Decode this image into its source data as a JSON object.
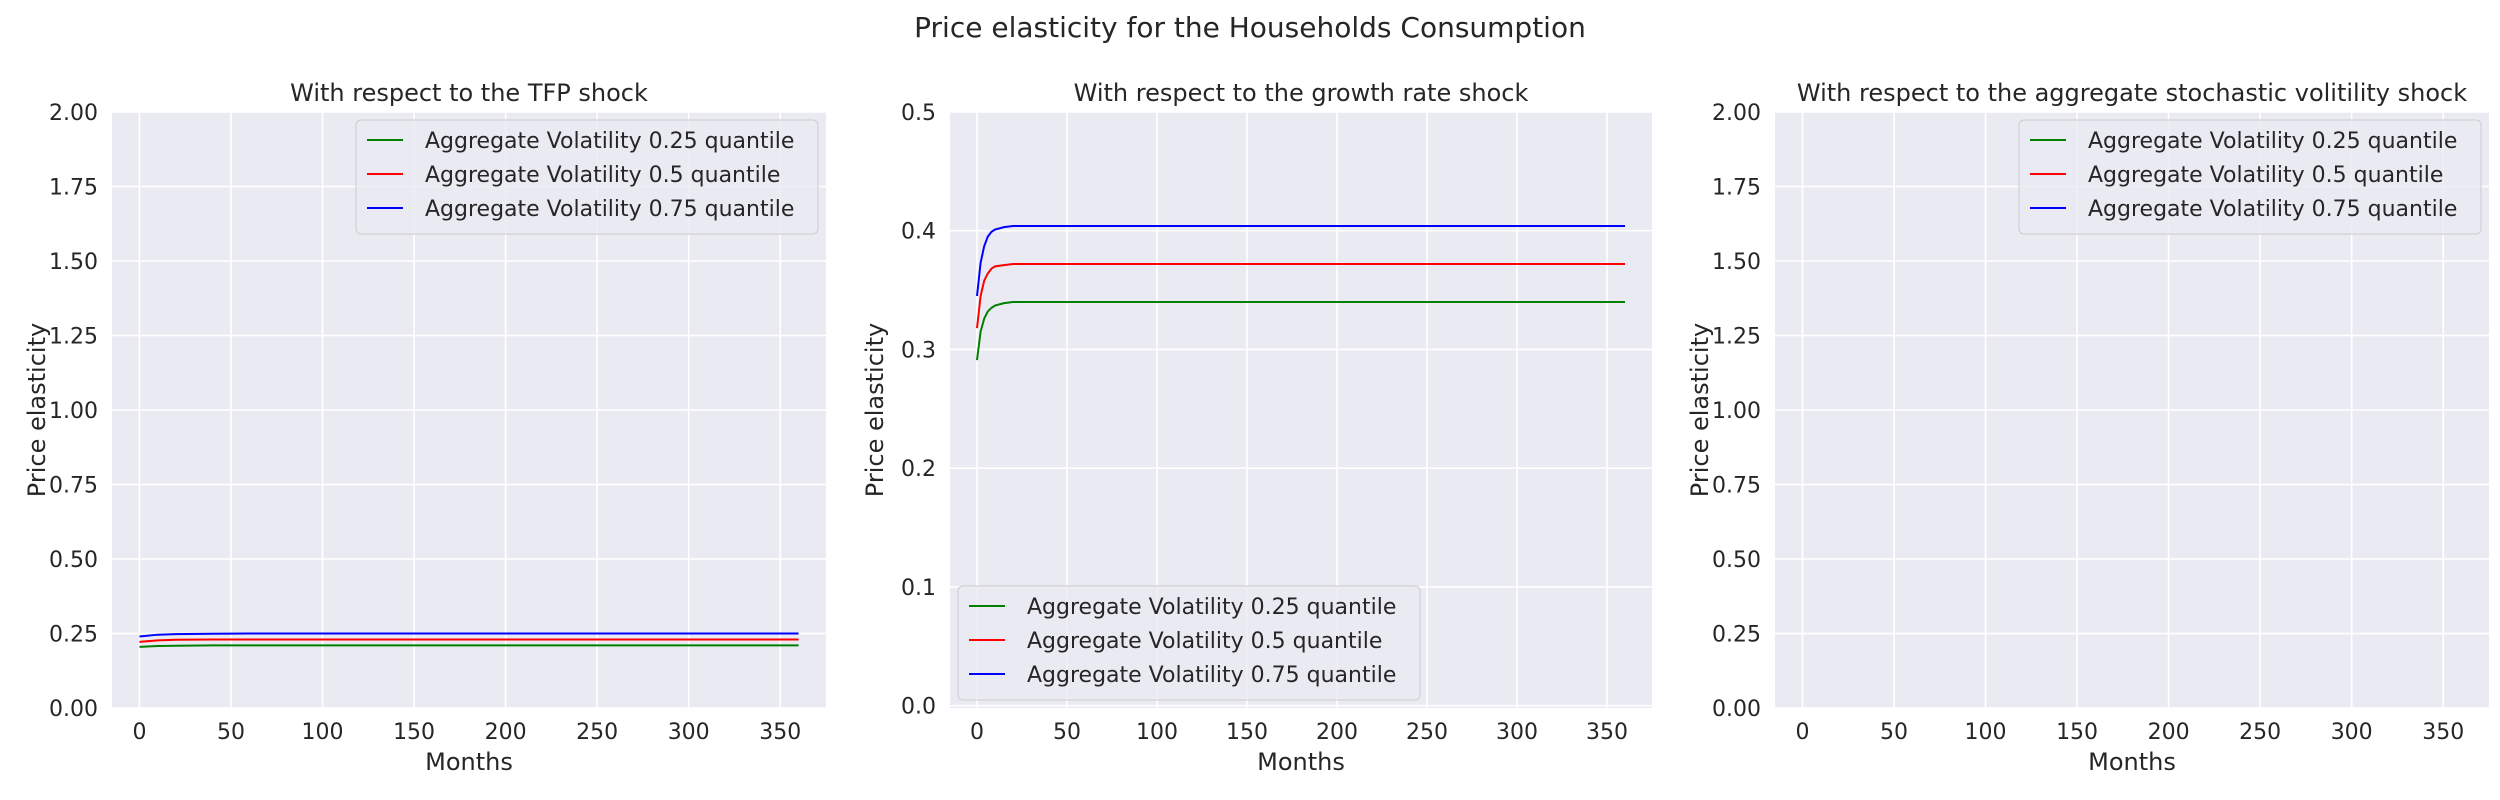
{
  "figure": {
    "suptitle": "Price elasticity for the Households Consumption"
  },
  "colors": {
    "background": "#ffffff",
    "axes_face": "#eaeaf2",
    "grid": "#ffffff",
    "q025": "#008000",
    "q05": "#ff0000",
    "q075": "#0000ff"
  },
  "chart_data": [
    {
      "type": "line",
      "title": "With respect to the TFP shock",
      "xlabel": "Months",
      "ylabel": "Price elasticity",
      "xlim": [
        -15,
        375
      ],
      "ylim": [
        0,
        2
      ],
      "xticks": [
        0,
        50,
        100,
        150,
        200,
        250,
        300,
        350
      ],
      "yticks": [
        "0.00",
        "0.25",
        "0.50",
        "0.75",
        "1.00",
        "1.25",
        "1.50",
        "1.75",
        "2.00"
      ],
      "grid": true,
      "legend_position": "top-right",
      "series": [
        {
          "name": "Aggregate Volatility 0.25 quantile",
          "color": "#008000",
          "x": [
            0,
            10,
            20,
            40,
            60,
            100,
            200,
            300,
            360
          ],
          "y": [
            0.205,
            0.208,
            0.209,
            0.21,
            0.21,
            0.21,
            0.21,
            0.21,
            0.21
          ]
        },
        {
          "name": "Aggregate Volatility 0.5 quantile",
          "color": "#ff0000",
          "x": [
            0,
            10,
            20,
            40,
            60,
            100,
            200,
            300,
            360
          ],
          "y": [
            0.222,
            0.227,
            0.229,
            0.23,
            0.23,
            0.23,
            0.23,
            0.23,
            0.23
          ]
        },
        {
          "name": "Aggregate Volatility 0.75 quantile",
          "color": "#0000ff",
          "x": [
            0,
            10,
            20,
            40,
            60,
            100,
            200,
            300,
            360
          ],
          "y": [
            0.24,
            0.246,
            0.248,
            0.249,
            0.25,
            0.25,
            0.25,
            0.25,
            0.25
          ]
        }
      ]
    },
    {
      "type": "line",
      "title": "With respect to the growth rate shock",
      "xlabel": "Months",
      "ylabel": "Price elasticity",
      "xlim": [
        -15,
        375
      ],
      "ylim": [
        -0.002,
        0.5
      ],
      "xticks": [
        0,
        50,
        100,
        150,
        200,
        250,
        300,
        350
      ],
      "yticks": [
        "0.0",
        "0.1",
        "0.2",
        "0.3",
        "0.4",
        "0.5"
      ],
      "grid": true,
      "legend_position": "bottom-left",
      "series": [
        {
          "name": "Aggregate Volatility 0.25 quantile",
          "color": "#008000",
          "x": [
            0,
            2,
            4,
            6,
            8,
            10,
            15,
            20,
            30,
            40,
            60,
            100,
            200,
            300,
            360
          ],
          "y": [
            0.291,
            0.315,
            0.326,
            0.332,
            0.335,
            0.337,
            0.339,
            0.34,
            0.34,
            0.34,
            0.34,
            0.34,
            0.34,
            0.34,
            0.34
          ]
        },
        {
          "name": "Aggregate Volatility 0.5 quantile",
          "color": "#ff0000",
          "x": [
            0,
            2,
            4,
            6,
            8,
            10,
            15,
            20,
            30,
            40,
            60,
            100,
            200,
            300,
            360
          ],
          "y": [
            0.318,
            0.345,
            0.358,
            0.364,
            0.368,
            0.37,
            0.371,
            0.372,
            0.372,
            0.372,
            0.372,
            0.372,
            0.372,
            0.372,
            0.372
          ]
        },
        {
          "name": "Aggregate Volatility 0.75 quantile",
          "color": "#0000ff",
          "x": [
            0,
            2,
            4,
            6,
            8,
            10,
            15,
            20,
            30,
            40,
            60,
            100,
            200,
            300,
            360
          ],
          "y": [
            0.345,
            0.373,
            0.387,
            0.395,
            0.399,
            0.401,
            0.403,
            0.404,
            0.404,
            0.404,
            0.404,
            0.404,
            0.404,
            0.404,
            0.404
          ]
        }
      ]
    },
    {
      "type": "line",
      "title": "With respect to the aggregate stochastic volitility shock",
      "xlabel": "Months",
      "ylabel": "Price elasticity",
      "xlim": [
        -15,
        375
      ],
      "ylim": [
        0,
        2
      ],
      "xticks": [
        0,
        50,
        100,
        150,
        200,
        250,
        300,
        350
      ],
      "yticks": [
        "0.00",
        "0.25",
        "0.50",
        "0.75",
        "1.00",
        "1.25",
        "1.50",
        "1.75",
        "2.00"
      ],
      "grid": true,
      "legend_position": "top-right",
      "series": [
        {
          "name": "Aggregate Volatility 0.25 quantile",
          "color": "#008000",
          "x": [],
          "y": []
        },
        {
          "name": "Aggregate Volatility 0.5 quantile",
          "color": "#ff0000",
          "x": [],
          "y": []
        },
        {
          "name": "Aggregate Volatility 0.75 quantile",
          "color": "#0000ff",
          "x": [],
          "y": []
        }
      ]
    }
  ]
}
